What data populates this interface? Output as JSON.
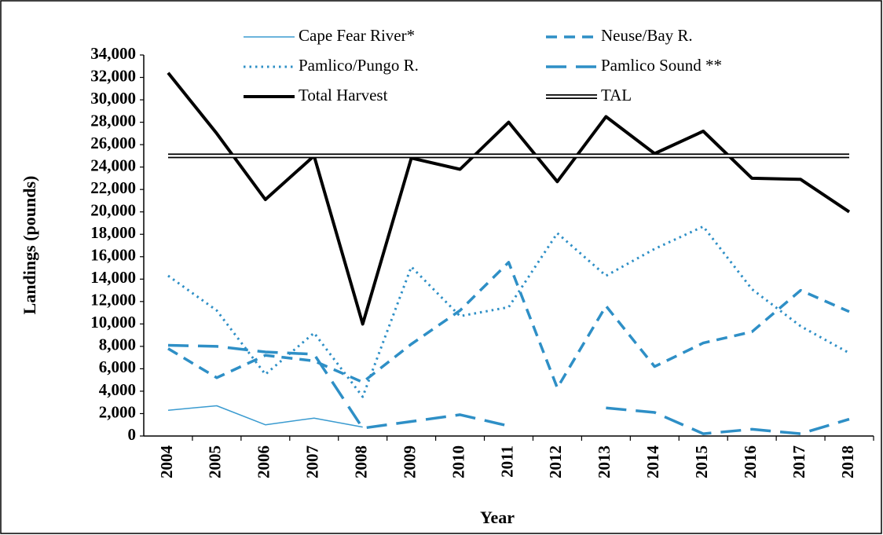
{
  "chart_data": {
    "type": "line",
    "x_label": "Year",
    "y_label": "Landings (pounds)",
    "categories": [
      "2004",
      "2005",
      "2006",
      "2007",
      "2008",
      "2009",
      "2010",
      "2011",
      "2012",
      "2013",
      "2014",
      "2015",
      "2016",
      "2017",
      "2018"
    ],
    "series": [
      {
        "name": "Cape Fear River*",
        "color": "#3a9bd0",
        "style": "thin",
        "values": [
          2300,
          2700,
          1000,
          1600,
          800,
          null,
          null,
          null,
          null,
          null,
          null,
          null,
          null,
          null,
          null
        ]
      },
      {
        "name": "Neuse/Bay R.",
        "color": "#2e8fc6",
        "style": "dashed",
        "values": [
          7800,
          5200,
          7200,
          6700,
          4800,
          8200,
          11200,
          15500,
          4300,
          11600,
          6200,
          8300,
          9300,
          13000,
          11100
        ]
      },
      {
        "name": "Pamlico/Pungo R.",
        "color": "#2e8fc6",
        "style": "dotted",
        "values": [
          14300,
          11200,
          5500,
          9200,
          3500,
          15100,
          10700,
          11500,
          18100,
          14300,
          16700,
          18700,
          13100,
          9800,
          7400
        ]
      },
      {
        "name": "Pamlico Sound **",
        "color": "#2e8fc6",
        "style": "longdash",
        "values": [
          8100,
          8000,
          7500,
          7300,
          700,
          1300,
          1900,
          900,
          null,
          2500,
          2100,
          200,
          600,
          200,
          1500
        ]
      },
      {
        "name": "Total Harvest",
        "color": "#000000",
        "style": "thick",
        "values": [
          32400,
          27000,
          21100,
          25000,
          10000,
          24800,
          23800,
          28000,
          22700,
          28500,
          25200,
          27200,
          23000,
          22900,
          20000
        ]
      },
      {
        "name": "TAL",
        "color": "#000000",
        "style": "double",
        "values": [
          25000,
          25000,
          25000,
          25000,
          25000,
          25000,
          25000,
          25000,
          25000,
          25000,
          25000,
          25000,
          25000,
          25000,
          25000
        ]
      }
    ],
    "ylim": [
      0,
      34000
    ],
    "yticks": [
      0,
      {
        "value": 2000,
        "label": "2,000"
      },
      {
        "value": 4000,
        "label": "4,000"
      },
      {
        "value": 6000,
        "label": "6,000"
      },
      {
        "value": 8000,
        "label": "8,000"
      },
      {
        "value": 10000,
        "label": "10,000"
      },
      {
        "value": 12000,
        "label": "12,000"
      },
      {
        "value": 14000,
        "label": "14,000"
      },
      {
        "value": 16000,
        "label": "16,000"
      },
      {
        "value": 18000,
        "label": "18,000"
      },
      {
        "value": 20000,
        "label": "20,000"
      },
      {
        "value": 22000,
        "label": "22,000"
      },
      {
        "value": 24000,
        "label": "24,000"
      },
      {
        "value": 26000,
        "label": "26,000"
      },
      {
        "value": 28000,
        "label": "28,000"
      },
      {
        "value": 30000,
        "label": "30,000"
      },
      {
        "value": 32000,
        "label": "32,000"
      },
      {
        "value": 34000,
        "label": "34,000"
      }
    ],
    "grid": false
  }
}
